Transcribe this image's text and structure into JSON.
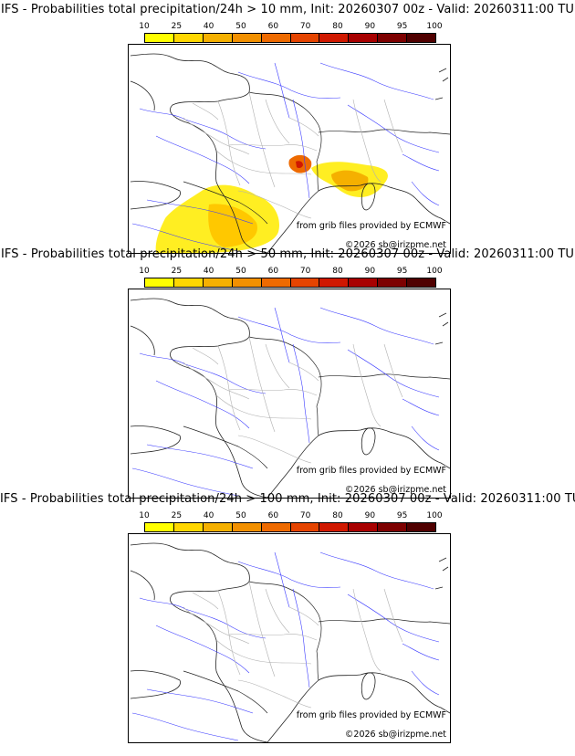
{
  "legend": {
    "ticks": [
      "10",
      "25",
      "40",
      "50",
      "60",
      "70",
      "80",
      "90",
      "95",
      "100"
    ],
    "colors": [
      "#ffff00",
      "#ffd700",
      "#f5b000",
      "#f29000",
      "#ee6a00",
      "#e54400",
      "#d01800",
      "#a80000",
      "#7d0000",
      "#500000"
    ]
  },
  "panels": [
    {
      "title": "IFS - Probabilities total precipitation/24h > 10 mm, Init: 20260307 00z - Valid: 20260311:00 TU",
      "credit": "from grib files provided by ECMWF",
      "copyright": "©2026 sb@irizpme.net",
      "has_precip": true
    },
    {
      "title": "IFS - Probabilities total precipitation/24h > 50 mm, Init: 20260307 00z - Valid: 20260311:00 TU",
      "credit": "from grib files provided by ECMWF",
      "copyright": "©2026 sb@irizpme.net",
      "has_precip": false
    },
    {
      "title": "IFS - Probabilities total precipitation/24h > 100 mm, Init: 20260307 00z - Valid: 20260311:00 TU",
      "credit": "from grib files provided by ECMWF",
      "copyright": "©2026 sb@irizpme.net",
      "has_precip": false
    }
  ]
}
